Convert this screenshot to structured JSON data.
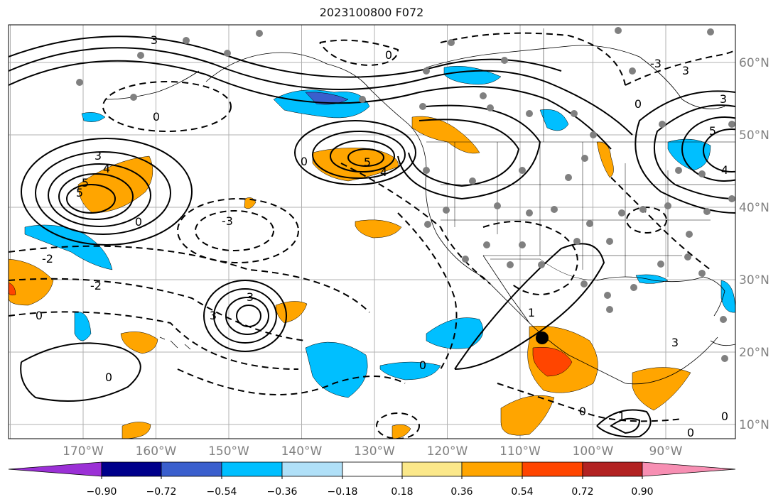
{
  "title": "2023100800 F072",
  "map": {
    "lon_labels": [
      "170°W",
      "160°W",
      "150°W",
      "140°W",
      "130°W",
      "120°W",
      "110°W",
      "100°W",
      "90°W"
    ],
    "lat_labels": [
      "60°N",
      "50°N",
      "40°N",
      "30°N",
      "20°N",
      "10°N"
    ],
    "contour_labels": [
      "-3",
      "-2",
      "-1",
      "0",
      "1",
      "2",
      "3",
      "4",
      "5"
    ],
    "colors": {
      "land": "#ffffff",
      "grid": "#b0b0b0",
      "contour": "#000000",
      "station_dot": "#808080",
      "tick_label": "#808080"
    }
  },
  "colorbar": {
    "tick_labels": [
      "−0.90",
      "−0.72",
      "−0.54",
      "−0.36",
      "−0.18",
      "0.18",
      "0.36",
      "0.54",
      "0.72",
      "0.90"
    ],
    "colors": [
      "#9b30d6",
      "#00008b",
      "#3a5fcd",
      "#00bfff",
      "#b0e0f8",
      "#ffffff",
      "#fbe88a",
      "#ffa500",
      "#ff4500",
      "#b22222",
      "#f78fb3"
    ]
  }
}
